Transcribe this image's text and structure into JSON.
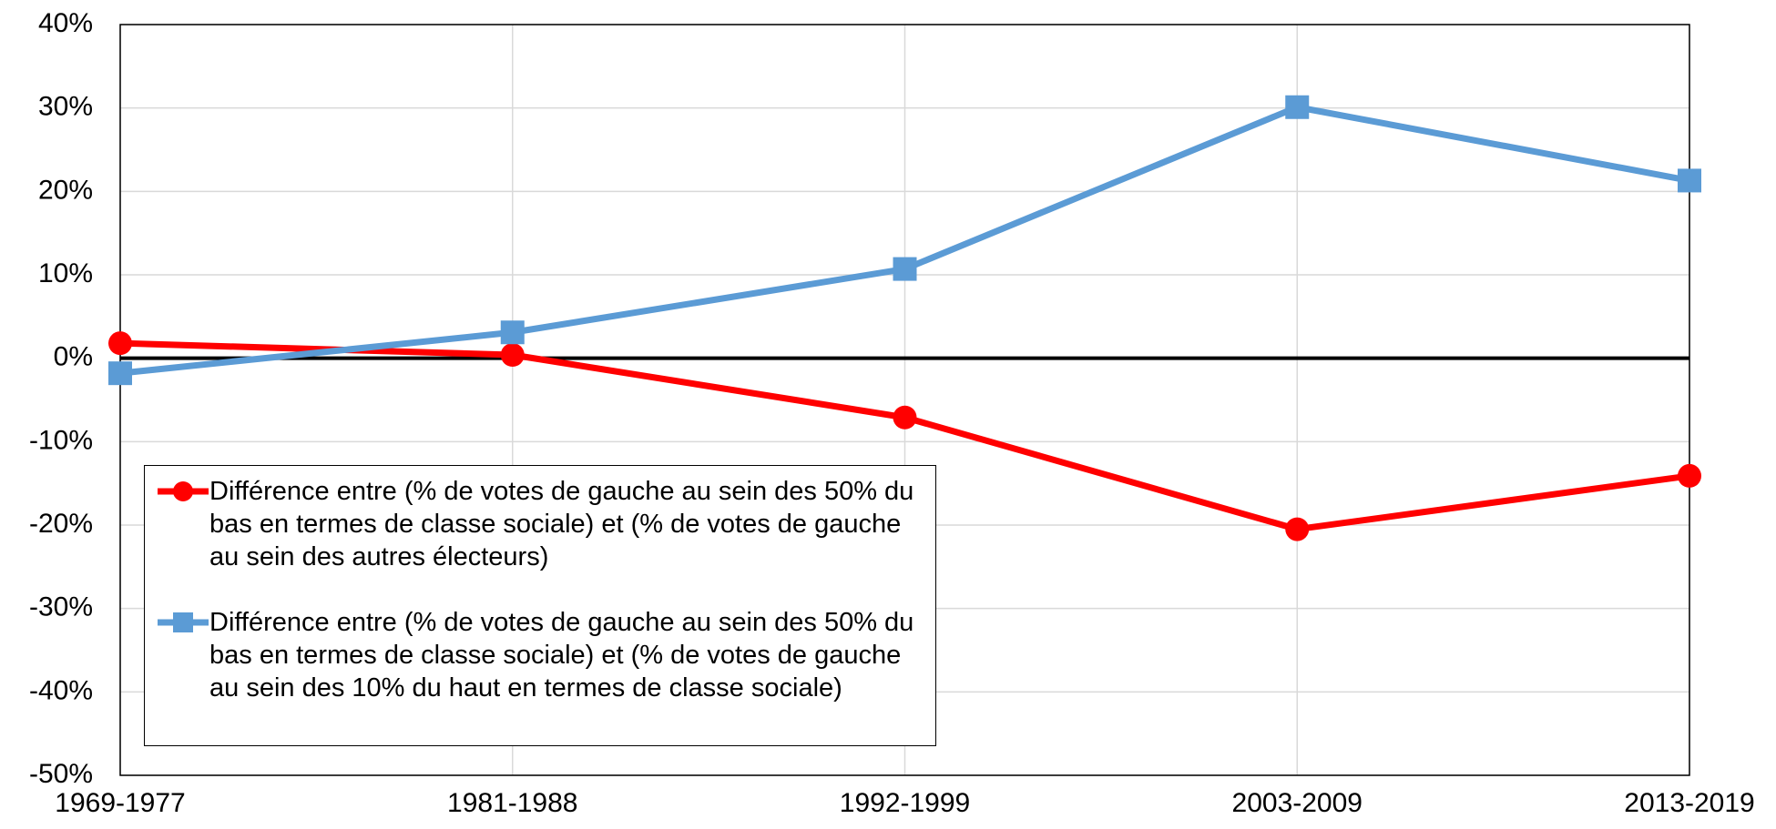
{
  "chart_data": {
    "type": "line",
    "categories": [
      "1969-1977",
      "1981-1988",
      "1992-1999",
      "2003-2009",
      "2013-2019"
    ],
    "series": [
      {
        "name": "Différence entre (% de votes de gauche au sein des 50% du bas en termes de classe sociale) et (% de votes de gauche au sein des autres électeurs)",
        "color": "#ff0000",
        "marker": "circle",
        "values": [
          1.8,
          0.4,
          -7.1,
          -20.5,
          -14.1
        ]
      },
      {
        "name": "Différence entre (% de votes de gauche au sein des 50% du bas en termes de classe sociale) et (% de votes de gauche au sein des 10% du haut en termes de classe sociale)",
        "color": "#5b9bd5",
        "marker": "square",
        "values": [
          -1.8,
          3.1,
          10.7,
          30.1,
          21.3
        ]
      }
    ],
    "ylim": [
      -50,
      40
    ],
    "yticks": [
      {
        "value": -50,
        "label": "-50%"
      },
      {
        "value": -40,
        "label": "-40%"
      },
      {
        "value": -30,
        "label": "-30%"
      },
      {
        "value": -20,
        "label": "-20%"
      },
      {
        "value": -10,
        "label": "-10%"
      },
      {
        "value": 0,
        "label": "0%"
      },
      {
        "value": 10,
        "label": "10%"
      },
      {
        "value": 20,
        "label": "20%"
      },
      {
        "value": 30,
        "label": "30%"
      },
      {
        "value": 40,
        "label": "40%"
      }
    ],
    "grid": true,
    "legend": "lower left"
  }
}
